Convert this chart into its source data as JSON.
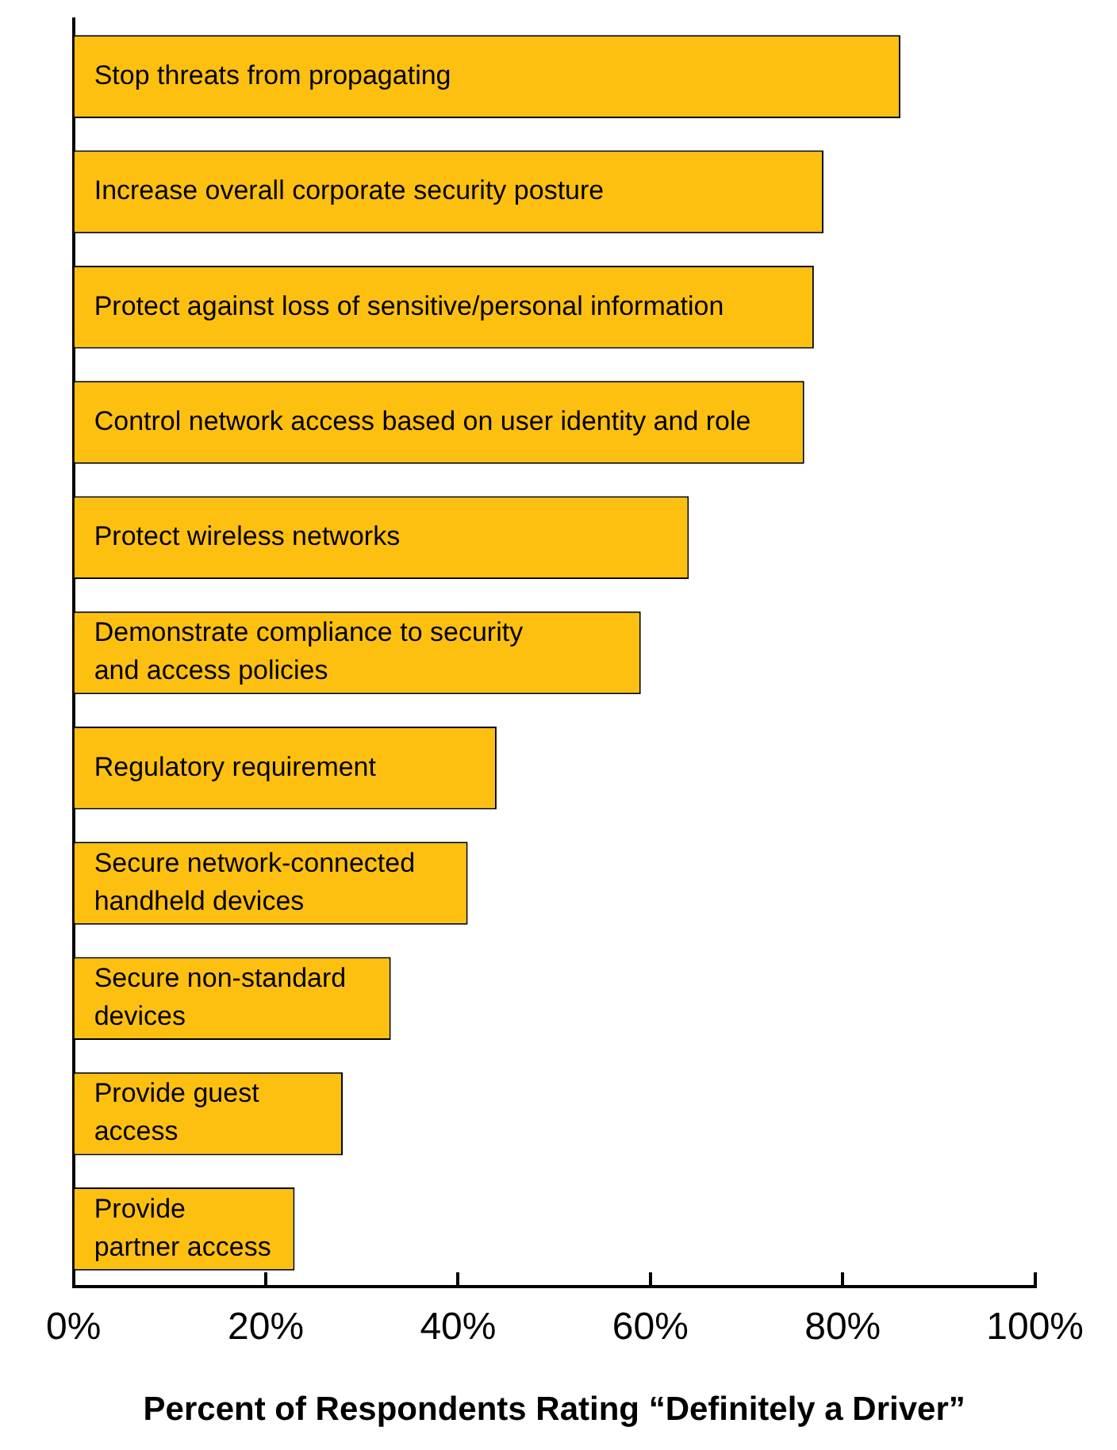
{
  "chart_data": {
    "type": "bar",
    "orientation": "horizontal",
    "xlabel": "Percent of Respondents Rating “Definitely a Driver”",
    "categories": [
      "Stop threats from propagating",
      "Increase overall corporate security posture",
      "Protect against loss of sensitive/personal information",
      "Control network access based on user identity and role",
      "Protect wireless networks",
      "Demonstrate compliance to security\nand access policies",
      "Regulatory requirement",
      "Secure network-connected\nhandheld devices",
      "Secure non-standard\ndevices",
      "Provide guest\naccess",
      "Provide\npartner access"
    ],
    "values": [
      86,
      78,
      77,
      76,
      64,
      59,
      44,
      41,
      33,
      28,
      23
    ],
    "color": "#fdc010",
    "xlim": [
      0,
      100
    ],
    "xticks": [
      {
        "value": 0,
        "label": "0%"
      },
      {
        "value": 20,
        "label": "20%"
      },
      {
        "value": 40,
        "label": "40%"
      },
      {
        "value": 60,
        "label": "60%"
      },
      {
        "value": 80,
        "label": "80%"
      },
      {
        "value": 100,
        "label": "100%"
      }
    ],
    "grid": false,
    "legend": false
  }
}
